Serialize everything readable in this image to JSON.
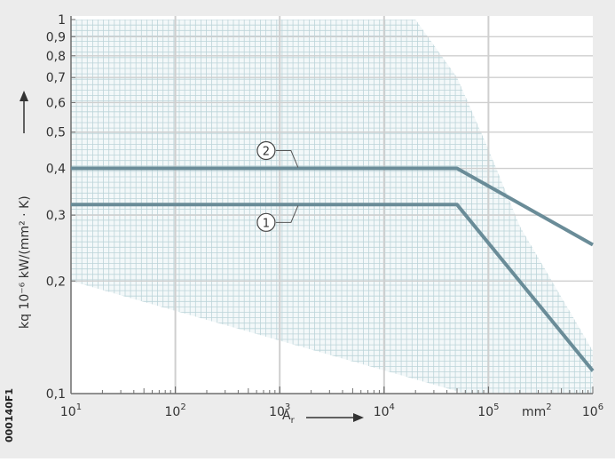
{
  "chart_data": {
    "type": "line",
    "xscale": "log",
    "yscale": "log",
    "xlim": [
      10,
      1000000
    ],
    "ylim": [
      0.1,
      1.0
    ],
    "grid": true,
    "xlabel": "A",
    "xlabel_sub": "r",
    "xunit": "mm²",
    "ylabel": "kq 10⁻⁶ kW/(mm² · K)",
    "x_ticks": [
      {
        "value": 10,
        "label_base": "10",
        "label_exp": "1"
      },
      {
        "value": 100,
        "label_base": "10",
        "label_exp": "2"
      },
      {
        "value": 1000,
        "label_base": "10",
        "label_exp": "3"
      },
      {
        "value": 10000,
        "label_base": "10",
        "label_exp": "4"
      },
      {
        "value": 100000,
        "label_base": "10",
        "label_exp": "5"
      },
      {
        "value": 1000000,
        "label_base": "10",
        "label_exp": "6"
      }
    ],
    "y_ticks": [
      {
        "value": 1.0,
        "label": "1"
      },
      {
        "value": 0.9,
        "label": "0,9"
      },
      {
        "value": 0.8,
        "label": "0,8"
      },
      {
        "value": 0.7,
        "label": "0,7"
      },
      {
        "value": 0.6,
        "label": "0,6"
      },
      {
        "value": 0.5,
        "label": "0,5"
      },
      {
        "value": 0.4,
        "label": "0,4"
      },
      {
        "value": 0.3,
        "label": "0,3"
      },
      {
        "value": 0.2,
        "label": "0,2"
      },
      {
        "value": 0.1,
        "label": "0,1"
      }
    ],
    "hatched_region": {
      "x": [
        10,
        20000,
        50000,
        100000,
        200000,
        1000000,
        1000000,
        60000,
        10,
        10
      ],
      "y": [
        1.0,
        1.0,
        0.7,
        0.45,
        0.28,
        0.13,
        0.1,
        0.1,
        0.2,
        1.0
      ]
    },
    "series": [
      {
        "marker": "2",
        "x": [
          10,
          50000,
          1000000
        ],
        "y": [
          0.4,
          0.4,
          0.25
        ]
      },
      {
        "marker": "1",
        "x": [
          10,
          50000,
          1000000
        ],
        "y": [
          0.32,
          0.32,
          0.115
        ]
      }
    ],
    "callouts": [
      {
        "marker": "2",
        "x": 1500,
        "y": 0.4,
        "direction": "up"
      },
      {
        "marker": "1",
        "x": 1500,
        "y": 0.32,
        "direction": "down"
      }
    ]
  },
  "figure_code": "000140F1",
  "colors": {
    "background": "#ececec",
    "plot_area": "#ffffff",
    "grid_major": "#cfcfcf",
    "hatch": "#bcd4d9",
    "curve": "#6a8c98",
    "axis": "#6f6f6f",
    "text": "#333333"
  }
}
